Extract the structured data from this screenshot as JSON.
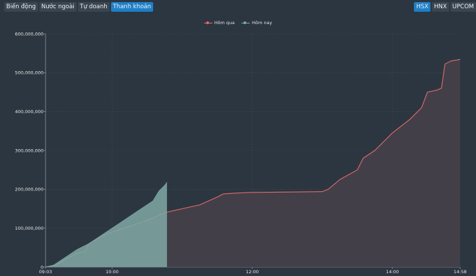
{
  "tabs_left": [
    {
      "label": "Biến động",
      "active": false
    },
    {
      "label": "Nước ngoài",
      "active": false
    },
    {
      "label": "Tự doanh",
      "active": false
    },
    {
      "label": "Thanh khoản",
      "active": true
    }
  ],
  "tabs_right": [
    {
      "label": "HSX",
      "active": true
    },
    {
      "label": "HNX",
      "active": false
    },
    {
      "label": "UPCOM",
      "active": false
    }
  ],
  "chart_data": {
    "type": "area",
    "x_ticks": [
      "09:03",
      "10:00",
      "12:00",
      "14:00",
      "14:58"
    ],
    "y_ticks": [
      "0",
      "100,000,000",
      "200,000,000",
      "300,000,000",
      "400,000,000",
      "500,000,000",
      "600,000,000"
    ],
    "ylim": [
      0,
      600000000
    ],
    "grid": true,
    "legend_position": "top-center",
    "series": [
      {
        "name": "Hôm qua",
        "color": "#e06a6a",
        "points": [
          [
            "09:03",
            0
          ],
          [
            "09:12",
            5000000
          ],
          [
            "09:20",
            20000000
          ],
          [
            "09:30",
            35000000
          ],
          [
            "09:37",
            40000000
          ],
          [
            "09:40",
            60000000
          ],
          [
            "09:46",
            70000000
          ],
          [
            "09:52",
            80000000
          ],
          [
            "10:00",
            90000000
          ],
          [
            "10:15",
            105000000
          ],
          [
            "10:30",
            120000000
          ],
          [
            "10:45",
            140000000
          ],
          [
            "11:00",
            150000000
          ],
          [
            "11:15",
            160000000
          ],
          [
            "11:30",
            180000000
          ],
          [
            "11:35",
            188000000
          ],
          [
            "11:45",
            190000000
          ],
          [
            "12:00",
            192000000
          ],
          [
            "12:30",
            193000000
          ],
          [
            "13:00",
            194000000
          ],
          [
            "13:05",
            200000000
          ],
          [
            "13:15",
            225000000
          ],
          [
            "13:30",
            250000000
          ],
          [
            "13:35",
            280000000
          ],
          [
            "13:45",
            300000000
          ],
          [
            "14:00",
            345000000
          ],
          [
            "14:15",
            380000000
          ],
          [
            "14:25",
            410000000
          ],
          [
            "14:30",
            450000000
          ],
          [
            "14:38",
            455000000
          ],
          [
            "14:42",
            460000000
          ],
          [
            "14:45",
            522000000
          ],
          [
            "14:50",
            530000000
          ],
          [
            "14:58",
            534000000
          ]
        ]
      },
      {
        "name": "Hôm nay",
        "color": "#7fa8a4",
        "points": [
          [
            "09:03",
            0
          ],
          [
            "09:10",
            5000000
          ],
          [
            "09:15",
            15000000
          ],
          [
            "09:20",
            25000000
          ],
          [
            "09:30",
            45000000
          ],
          [
            "09:40",
            60000000
          ],
          [
            "09:50",
            80000000
          ],
          [
            "10:00",
            100000000
          ],
          [
            "10:10",
            120000000
          ],
          [
            "10:20",
            140000000
          ],
          [
            "10:30",
            160000000
          ],
          [
            "10:35",
            170000000
          ],
          [
            "10:40",
            195000000
          ],
          [
            "10:45",
            210000000
          ],
          [
            "10:47",
            218000000
          ]
        ]
      }
    ]
  }
}
